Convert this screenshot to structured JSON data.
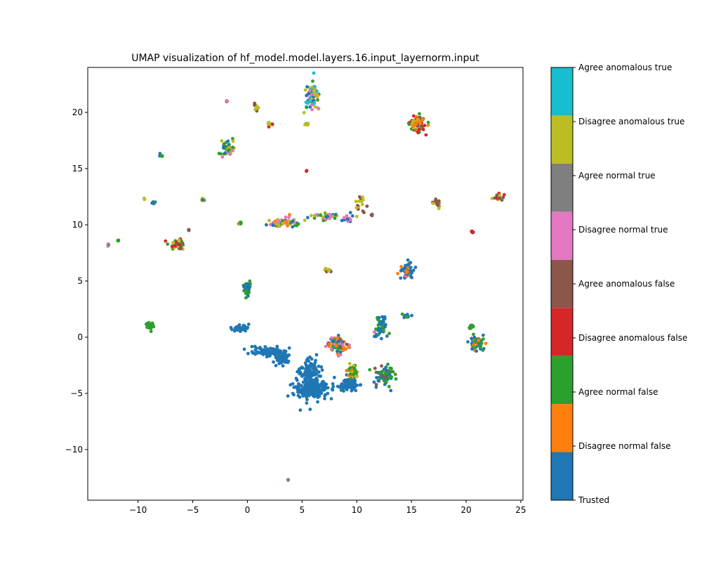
{
  "chart_data": {
    "type": "scatter",
    "title": "UMAP visualization of hf_model.model.layers.16.input_layernorm.input",
    "xlabel": "",
    "ylabel": "",
    "xlim": [
      -14.6,
      25.2
    ],
    "ylim": [
      -14.5,
      24.0
    ],
    "x_ticks": [
      -10,
      -5,
      0,
      5,
      10,
      15,
      20,
      25
    ],
    "x_tick_labels": [
      "−10",
      "−5",
      "0",
      "5",
      "10",
      "15",
      "20",
      "25"
    ],
    "y_ticks": [
      -10,
      -5,
      0,
      5,
      10,
      15,
      20
    ],
    "y_tick_labels": [
      "−10",
      "−5",
      "0",
      "5",
      "10",
      "15",
      "20"
    ],
    "grid": false,
    "colorbar": {
      "labels": [
        "Trusted",
        "Disagree normal false",
        "Agree normal false",
        "Disagree anomalous false",
        "Agree anomalous false",
        "Disagree normal true",
        "Agree normal true",
        "Disagree anomalous true",
        "Agree anomalous true"
      ],
      "colors": [
        "#1f77b4",
        "#ff7f0e",
        "#2ca02c",
        "#d62728",
        "#8c564b",
        "#e377c2",
        "#7f7f7f",
        "#bcbd22",
        "#17becf"
      ]
    },
    "clusters": [
      {
        "x": 6.0,
        "y": -4.6,
        "sx": 0.75,
        "sy": 0.45,
        "n": 220,
        "cat": [
          0
        ]
      },
      {
        "x": 5.7,
        "y": -3.1,
        "sx": 0.45,
        "sy": 0.55,
        "n": 110,
        "cat": [
          0
        ]
      },
      {
        "x": 1.7,
        "y": -1.3,
        "sx": 0.7,
        "sy": 0.22,
        "n": 70,
        "cat": [
          0
        ]
      },
      {
        "x": 3.1,
        "y": -1.8,
        "sx": 0.35,
        "sy": 0.4,
        "n": 70,
        "cat": [
          0
        ]
      },
      {
        "x": 9.3,
        "y": -4.2,
        "sx": 0.35,
        "sy": 0.28,
        "n": 80,
        "cat": [
          0
        ]
      },
      {
        "x": 12.5,
        "y": -3.4,
        "sx": 0.45,
        "sy": 0.45,
        "n": 70,
        "cat": [
          0,
          0,
          2,
          2,
          4
        ]
      },
      {
        "x": 12.2,
        "y": 0.8,
        "sx": 0.25,
        "sy": 0.45,
        "n": 50,
        "cat": [
          0,
          0,
          2
        ]
      },
      {
        "x": 14.6,
        "y": 6.0,
        "sx": 0.35,
        "sy": 0.35,
        "n": 60,
        "cat": [
          0,
          0,
          0,
          5,
          1
        ]
      },
      {
        "x": 21.1,
        "y": -0.5,
        "sx": 0.3,
        "sy": 0.35,
        "n": 60,
        "cat": [
          0,
          0,
          1,
          2
        ]
      },
      {
        "x": 20.5,
        "y": 0.9,
        "sx": 0.12,
        "sy": 0.1,
        "n": 14,
        "cat": [
          2
        ]
      },
      {
        "x": 8.3,
        "y": -0.6,
        "sx": 0.5,
        "sy": 0.4,
        "n": 90,
        "cat": [
          1,
          2,
          5,
          4,
          0
        ]
      },
      {
        "x": 9.6,
        "y": -3.1,
        "sx": 0.35,
        "sy": 0.35,
        "n": 35,
        "cat": [
          1,
          2,
          7
        ]
      },
      {
        "x": 0.0,
        "y": 4.3,
        "sx": 0.15,
        "sy": 0.35,
        "n": 40,
        "cat": [
          0,
          0,
          2
        ]
      },
      {
        "x": -0.6,
        "y": 0.8,
        "sx": 0.4,
        "sy": 0.15,
        "n": 30,
        "cat": [
          0
        ]
      },
      {
        "x": -8.9,
        "y": 1.0,
        "sx": 0.15,
        "sy": 0.15,
        "n": 30,
        "cat": [
          2
        ]
      },
      {
        "x": 3.2,
        "y": 10.2,
        "sx": 0.55,
        "sy": 0.18,
        "n": 70,
        "cat": [
          0,
          2,
          1,
          7,
          5
        ]
      },
      {
        "x": 5.9,
        "y": 21.4,
        "sx": 0.35,
        "sy": 0.55,
        "n": 70,
        "cat": [
          0,
          2,
          5,
          7,
          8
        ]
      },
      {
        "x": 15.6,
        "y": 19.0,
        "sx": 0.35,
        "sy": 0.35,
        "n": 80,
        "cat": [
          3,
          4,
          7,
          1,
          2
        ]
      },
      {
        "x": -1.8,
        "y": 16.8,
        "sx": 0.3,
        "sy": 0.35,
        "n": 50,
        "cat": [
          0,
          2,
          7,
          5
        ]
      },
      {
        "x": 7.0,
        "y": 10.7,
        "sx": 0.8,
        "sy": 0.18,
        "n": 40,
        "cat": [
          5,
          7,
          2,
          0
        ]
      },
      {
        "x": 10.4,
        "y": 11.9,
        "sx": 0.25,
        "sy": 0.35,
        "n": 15,
        "cat": [
          7,
          4
        ]
      },
      {
        "x": 9.2,
        "y": 10.6,
        "sx": 0.35,
        "sy": 0.2,
        "n": 12,
        "cat": [
          5,
          0
        ]
      },
      {
        "x": 17.4,
        "y": 11.9,
        "sx": 0.2,
        "sy": 0.15,
        "n": 16,
        "cat": [
          4,
          7
        ]
      },
      {
        "x": 23.0,
        "y": 12.4,
        "sx": 0.25,
        "sy": 0.18,
        "n": 16,
        "cat": [
          3,
          4,
          7
        ]
      },
      {
        "x": 20.6,
        "y": 9.35,
        "sx": 0.08,
        "sy": 0.06,
        "n": 8,
        "cat": [
          3
        ]
      },
      {
        "x": 0.8,
        "y": 20.5,
        "sx": 0.15,
        "sy": 0.18,
        "n": 12,
        "cat": [
          4,
          7
        ]
      },
      {
        "x": 2.0,
        "y": 18.9,
        "sx": 0.12,
        "sy": 0.12,
        "n": 10,
        "cat": [
          7,
          3
        ]
      },
      {
        "x": 5.5,
        "y": 18.9,
        "sx": 0.08,
        "sy": 0.06,
        "n": 8,
        "cat": [
          0,
          7,
          2
        ]
      },
      {
        "x": 5.4,
        "y": 14.8,
        "sx": 0.03,
        "sy": 0.03,
        "n": 3,
        "cat": [
          3
        ]
      },
      {
        "x": -1.9,
        "y": 21.0,
        "sx": 0.04,
        "sy": 0.04,
        "n": 4,
        "cat": [
          5,
          6
        ]
      },
      {
        "x": -7.9,
        "y": 16.2,
        "sx": 0.08,
        "sy": 0.06,
        "n": 6,
        "cat": [
          2,
          0
        ]
      },
      {
        "x": -9.4,
        "y": 12.3,
        "sx": 0.05,
        "sy": 0.04,
        "n": 3,
        "cat": [
          7
        ]
      },
      {
        "x": -8.6,
        "y": 12.0,
        "sx": 0.1,
        "sy": 0.06,
        "n": 6,
        "cat": [
          2,
          0
        ]
      },
      {
        "x": -4.1,
        "y": 12.2,
        "sx": 0.12,
        "sy": 0.1,
        "n": 8,
        "cat": [
          0,
          7
        ]
      },
      {
        "x": -0.6,
        "y": 10.1,
        "sx": 0.12,
        "sy": 0.1,
        "n": 8,
        "cat": [
          2,
          7
        ]
      },
      {
        "x": -12.7,
        "y": 8.2,
        "sx": 0.06,
        "sy": 0.05,
        "n": 4,
        "cat": [
          5,
          6
        ]
      },
      {
        "x": -11.8,
        "y": 8.6,
        "sx": 0.06,
        "sy": 0.05,
        "n": 4,
        "cat": [
          2
        ]
      },
      {
        "x": -6.3,
        "y": 8.3,
        "sx": 0.45,
        "sy": 0.25,
        "n": 30,
        "cat": [
          3,
          4,
          2,
          7
        ]
      },
      {
        "x": -5.4,
        "y": 9.55,
        "sx": 0.06,
        "sy": 0.05,
        "n": 4,
        "cat": [
          4,
          2
        ]
      },
      {
        "x": 7.4,
        "y": 5.9,
        "sx": 0.12,
        "sy": 0.12,
        "n": 8,
        "cat": [
          4,
          7
        ]
      },
      {
        "x": 11.4,
        "y": 10.9,
        "sx": 0.05,
        "sy": 0.05,
        "n": 3,
        "cat": [
          4
        ]
      },
      {
        "x": 14.5,
        "y": 1.9,
        "sx": 0.2,
        "sy": 0.08,
        "n": 10,
        "cat": [
          0,
          2
        ]
      },
      {
        "x": 11.6,
        "y": 0.5,
        "sx": 0.03,
        "sy": 0.03,
        "n": 2,
        "cat": [
          5
        ]
      },
      {
        "x": 3.7,
        "y": -12.7,
        "sx": 0.04,
        "sy": 0.04,
        "n": 4,
        "cat": [
          5,
          6
        ]
      }
    ]
  }
}
